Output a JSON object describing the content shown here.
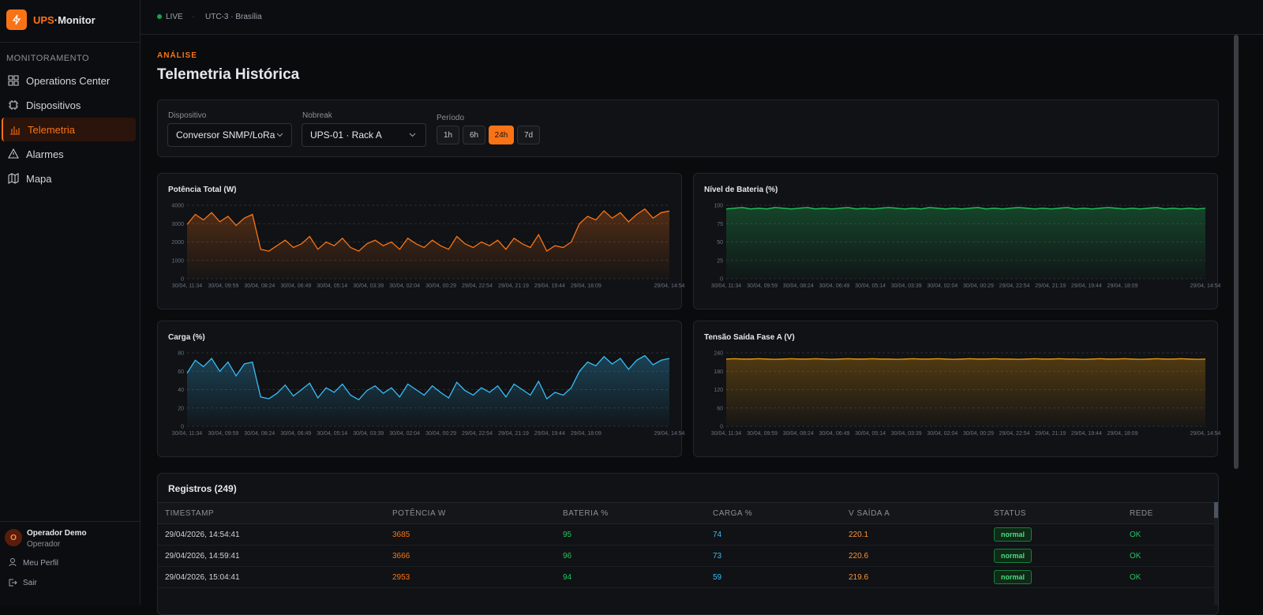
{
  "sidebar": {
    "brand_a": "UPS",
    "brand_b": "·Monitor",
    "section": "MONITORAMENTO",
    "nav": [
      "Operations Center",
      "Dispositivos",
      "Telemetria",
      "Alarmes",
      "Mapa"
    ],
    "active": 2,
    "user": {
      "avatar": "O",
      "name": "Operador Demo",
      "role": "Operador"
    },
    "links": [
      "Meu Perfil",
      "Sair"
    ]
  },
  "header": {
    "status": "LIVE",
    "timezone": "UTC-3 · Brasília"
  },
  "page": {
    "eyebrow": "ANÁLISE",
    "title": "Telemetria Histórica"
  },
  "filters": {
    "device_label": "Dispositivo",
    "device": "Conversor SNMP/LoRa",
    "ups_label": "Nobreak",
    "ups": "UPS-01 · Rack A",
    "period_label": "Período",
    "periods": [
      "1h",
      "6h",
      "24h",
      "7d"
    ],
    "active_period": 2
  },
  "chart_data": [
    {
      "type": "line",
      "title": "Potência Total (W)",
      "ylim": [
        0,
        4000
      ],
      "yticks": [
        0,
        1000,
        2000,
        3000,
        4000
      ],
      "grid": true,
      "x_labels": [
        "30/04, 11:34",
        "30/04, 09:59",
        "30/04, 08:24",
        "30/04, 06:49",
        "30/04, 05:14",
        "30/04, 03:39",
        "30/04, 02:04",
        "30/04, 00:29",
        "29/04, 22:54",
        "29/04, 21:19",
        "29/04, 19:44",
        "29/04, 18:09",
        "29/04, 14:54"
      ],
      "series": [
        {
          "color": "#f97316",
          "values": [
            2950,
            3500,
            3200,
            3600,
            3100,
            3400,
            2900,
            3300,
            3500,
            1600,
            1500,
            1800,
            2100,
            1700,
            1900,
            2300,
            1600,
            2000,
            1800,
            2200,
            1700,
            1500,
            1900,
            2100,
            1800,
            2000,
            1600,
            2200,
            1900,
            1700,
            2100,
            1800,
            1600,
            2300,
            1900,
            1700,
            2000,
            1800,
            2100,
            1600,
            2200,
            1900,
            1700,
            2400,
            1500,
            1800,
            1700,
            2000,
            3000,
            3400,
            3200,
            3700,
            3300,
            3600,
            3100,
            3500,
            3800,
            3300,
            3600,
            3685
          ]
        }
      ]
    },
    {
      "type": "line",
      "title": "Nível de Bateria (%)",
      "ylim": [
        0,
        100
      ],
      "yticks": [
        0,
        25,
        50,
        75,
        100
      ],
      "grid": true,
      "x_labels": [
        "30/04, 11:34",
        "30/04, 09:59",
        "30/04, 08:24",
        "30/04, 06:49",
        "30/04, 05:14",
        "30/04, 03:39",
        "30/04, 02:04",
        "30/04, 00:29",
        "29/04, 22:54",
        "29/04, 21:19",
        "29/04, 19:44",
        "29/04, 18:09",
        "29/04, 14:54"
      ],
      "series": [
        {
          "color": "#22c55e",
          "values": [
            95,
            96,
            97,
            95,
            96,
            95,
            97,
            96,
            95,
            96,
            97,
            95,
            96,
            95,
            96,
            97,
            95,
            96,
            95,
            96,
            97,
            96,
            95,
            96,
            95,
            97,
            96,
            95,
            96,
            95,
            96,
            97,
            95,
            96,
            95,
            96,
            97,
            96,
            95,
            96,
            95,
            96,
            97,
            95,
            96,
            95,
            96,
            97,
            96,
            95,
            96,
            95,
            96,
            97,
            95,
            96,
            95,
            96,
            95,
            96
          ]
        }
      ]
    },
    {
      "type": "line",
      "title": "Carga (%)",
      "ylim": [
        0,
        80
      ],
      "yticks": [
        0,
        20,
        40,
        60,
        80
      ],
      "grid": true,
      "x_labels": [
        "30/04, 11:34",
        "30/04, 09:59",
        "30/04, 08:24",
        "30/04, 06:49",
        "30/04, 05:14",
        "30/04, 03:39",
        "30/04, 02:04",
        "30/04, 00:29",
        "29/04, 22:54",
        "29/04, 21:19",
        "29/04, 19:44",
        "29/04, 18:09",
        "29/04, 14:54"
      ],
      "series": [
        {
          "color": "#38bdf8",
          "values": [
            58,
            72,
            65,
            74,
            60,
            70,
            55,
            68,
            70,
            32,
            30,
            36,
            45,
            33,
            40,
            47,
            31,
            42,
            37,
            46,
            34,
            29,
            39,
            44,
            36,
            42,
            32,
            46,
            40,
            34,
            44,
            37,
            31,
            48,
            39,
            34,
            42,
            37,
            44,
            32,
            46,
            40,
            34,
            49,
            30,
            37,
            34,
            42,
            60,
            70,
            66,
            76,
            68,
            74,
            62,
            72,
            77,
            67,
            72,
            74
          ]
        }
      ]
    },
    {
      "type": "line",
      "title": "Tensão Saída Fase A (V)",
      "ylim": [
        0,
        240
      ],
      "yticks": [
        0,
        60,
        120,
        180,
        240
      ],
      "grid": true,
      "x_labels": [
        "30/04, 11:34",
        "30/04, 09:59",
        "30/04, 08:24",
        "30/04, 06:49",
        "30/04, 05:14",
        "30/04, 03:39",
        "30/04, 02:04",
        "30/04, 00:29",
        "29/04, 22:54",
        "29/04, 21:19",
        "29/04, 19:44",
        "29/04, 18:09",
        "29/04, 14:54"
      ],
      "series": [
        {
          "color": "#f59e0b",
          "values": [
            220,
            221,
            220,
            220,
            221,
            220,
            219,
            220,
            221,
            220,
            220,
            221,
            220,
            219,
            220,
            221,
            220,
            220,
            221,
            220,
            220,
            219,
            220,
            221,
            220,
            220,
            221,
            220,
            219,
            220,
            221,
            220,
            220,
            221,
            220,
            220,
            219,
            220,
            221,
            220,
            220,
            221,
            220,
            220,
            219,
            220,
            221,
            220,
            220,
            221,
            220,
            219,
            220,
            221,
            220,
            220,
            221,
            220,
            219,
            220
          ]
        }
      ]
    }
  ],
  "table": {
    "title": "Registros (249)",
    "headers": [
      "TIMESTAMP",
      "POTÊNCIA W",
      "BATERIA %",
      "CARGA %",
      "V SAÍDA A",
      "STATUS",
      "REDE"
    ],
    "rows": [
      [
        "29/04/2026, 14:54:41",
        "3685",
        "95",
        "74",
        "220.1",
        "normal",
        "OK"
      ],
      [
        "29/04/2026, 14:59:41",
        "3666",
        "96",
        "73",
        "220.6",
        "normal",
        "OK"
      ],
      [
        "29/04/2026, 15:04:41",
        "2953",
        "94",
        "59",
        "219.6",
        "normal",
        "OK"
      ]
    ]
  }
}
